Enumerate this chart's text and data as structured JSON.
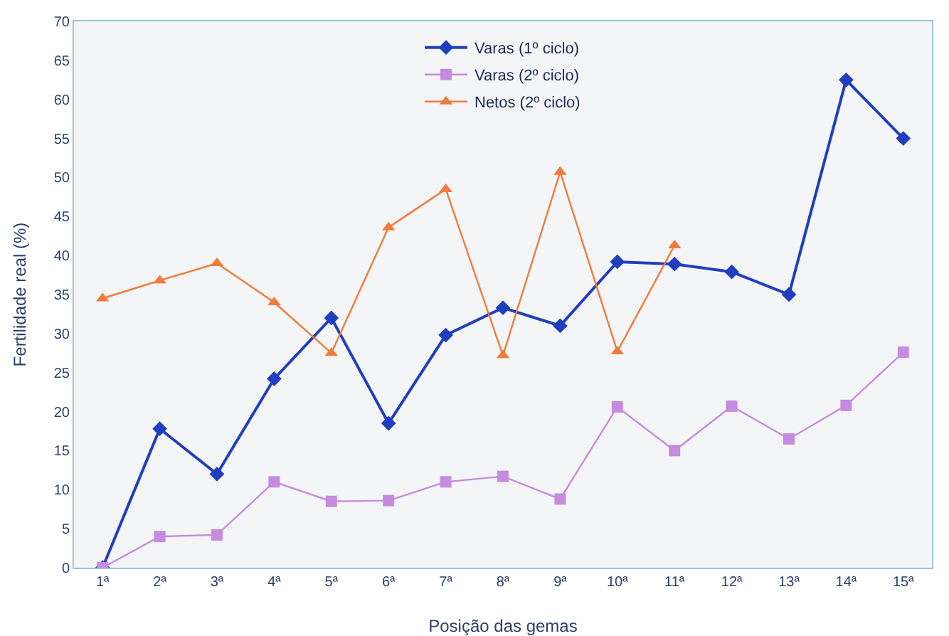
{
  "chart_data": {
    "type": "line",
    "xlabel": "Posição das gemas",
    "ylabel": "Fertilidade real (%)",
    "categories": [
      "1ª",
      "2ª",
      "3ª",
      "4ª",
      "5ª",
      "6ª",
      "7ª",
      "8ª",
      "9ª",
      "10ª",
      "11ª",
      "12ª",
      "13ª",
      "14ª",
      "15ª"
    ],
    "series": [
      {
        "name": "Varas (1º ciclo)",
        "color": "#1f3fbf",
        "marker": "diamond",
        "values": [
          0,
          17.8,
          12,
          24.2,
          32,
          18.5,
          29.8,
          33.3,
          31,
          39.2,
          38.9,
          37.9,
          35,
          62.5,
          55
        ]
      },
      {
        "name": "Varas (2º ciclo)",
        "color": "#c58be0",
        "marker": "square",
        "values": [
          0,
          4,
          4.2,
          11,
          8.5,
          8.6,
          11,
          11.7,
          8.8,
          20.6,
          15,
          20.7,
          16.5,
          20.8,
          27.6
        ]
      },
      {
        "name": "Netos (2º ciclo)",
        "color": "#f07a3a",
        "marker": "triangle",
        "values": [
          34.5,
          36.8,
          39,
          34,
          27.5,
          43.6,
          48.5,
          27.2,
          50.7,
          27.7,
          41.3,
          null,
          null,
          null,
          null
        ]
      }
    ],
    "ylim": [
      0,
      70
    ],
    "yticks": [
      0,
      5,
      10,
      15,
      20,
      25,
      30,
      35,
      40,
      45,
      50,
      55,
      60,
      65,
      70
    ],
    "grid": false,
    "legend": "top",
    "line_style": "solid"
  }
}
